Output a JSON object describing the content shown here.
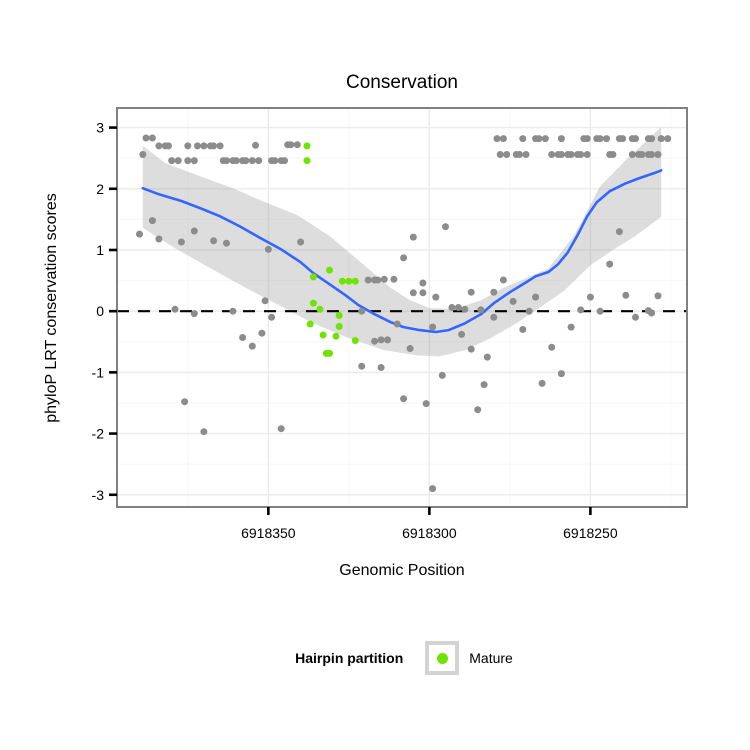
{
  "title": "Conservation",
  "axes": {
    "x": {
      "label": "Genomic Position",
      "reversed": true,
      "domain_left": 6918397,
      "domain_right": 6918220,
      "ticks": [
        {
          "v": 6918350,
          "label": "6918350"
        },
        {
          "v": 6918300,
          "label": "6918300"
        },
        {
          "v": 6918250,
          "label": "6918250"
        }
      ],
      "minor": [
        6918375,
        6918325,
        6918275,
        6918225
      ]
    },
    "y": {
      "label": "phyloP LRT conservation scores",
      "domain_bottom": -3.2,
      "domain_top": 3.32,
      "ticks": [
        {
          "v": 3,
          "label": "3"
        },
        {
          "v": 2,
          "label": "2"
        },
        {
          "v": 1,
          "label": "1"
        },
        {
          "v": 0,
          "label": "0"
        },
        {
          "v": -1,
          "label": "-1"
        },
        {
          "v": -2,
          "label": "-2"
        },
        {
          "v": -3,
          "label": "-3"
        }
      ],
      "minor": [
        2.5,
        1.5,
        0.5,
        -0.5,
        -1.5,
        -2.5
      ]
    }
  },
  "legend": {
    "title": "Hairpin partition",
    "items": [
      {
        "label": "Mature",
        "color": "#6fe400"
      }
    ]
  },
  "colors": {
    "other_points": "#8c8c8c",
    "mature_points": "#6fe400",
    "smooth_line": "#3366ff",
    "band_fill": "#999999",
    "band_opacity": 0.33,
    "panel_border": "#808080",
    "grid_major": "#ebebeb",
    "grid_minor": "#f6f6f6",
    "reference_line": "#000000"
  },
  "chart_data": {
    "type": "scatter",
    "title": "Conservation",
    "xlabel": "Genomic Position",
    "ylabel": "phyloP LRT conservation scores",
    "x_axis_reversed": true,
    "xlim": [
      6918397,
      6918220
    ],
    "ylim": [
      -3.2,
      3.32
    ],
    "reference_line": {
      "y": 0,
      "style": "dashed",
      "color": "#000000"
    },
    "series": [
      {
        "name": "Other",
        "color": "#8c8c8c",
        "points": [
          [
            6918388,
            2.83
          ],
          [
            6918386,
            2.83
          ],
          [
            6918389,
            2.56
          ],
          [
            6918384,
            2.7
          ],
          [
            6918382,
            2.7
          ],
          [
            6918381,
            2.7
          ],
          [
            6918375,
            2.7
          ],
          [
            6918372,
            2.7
          ],
          [
            6918370,
            2.7
          ],
          [
            6918368,
            2.7
          ],
          [
            6918367,
            2.7
          ],
          [
            6918365,
            2.7
          ],
          [
            6918354,
            2.71
          ],
          [
            6918344,
            2.72
          ],
          [
            6918343,
            2.72
          ],
          [
            6918341,
            2.72
          ],
          [
            6918380,
            2.46
          ],
          [
            6918378,
            2.46
          ],
          [
            6918375,
            2.46
          ],
          [
            6918373,
            2.46
          ],
          [
            6918364,
            2.46
          ],
          [
            6918363,
            2.46
          ],
          [
            6918361,
            2.46
          ],
          [
            6918360,
            2.46
          ],
          [
            6918358,
            2.46
          ],
          [
            6918357,
            2.46
          ],
          [
            6918355,
            2.46
          ],
          [
            6918353,
            2.46
          ],
          [
            6918349,
            2.46
          ],
          [
            6918348,
            2.46
          ],
          [
            6918346,
            2.46
          ],
          [
            6918345,
            2.46
          ],
          [
            6918279,
            2.82
          ],
          [
            6918277,
            2.82
          ],
          [
            6918271,
            2.82
          ],
          [
            6918267,
            2.82
          ],
          [
            6918266,
            2.82
          ],
          [
            6918264,
            2.82
          ],
          [
            6918259,
            2.82
          ],
          [
            6918252,
            2.82
          ],
          [
            6918251,
            2.82
          ],
          [
            6918248,
            2.82
          ],
          [
            6918247,
            2.82
          ],
          [
            6918245,
            2.82
          ],
          [
            6918241,
            2.82
          ],
          [
            6918240,
            2.82
          ],
          [
            6918237,
            2.82
          ],
          [
            6918236,
            2.82
          ],
          [
            6918232,
            2.82
          ],
          [
            6918231,
            2.82
          ],
          [
            6918228,
            2.82
          ],
          [
            6918226,
            2.82
          ],
          [
            6918278,
            2.56
          ],
          [
            6918276,
            2.56
          ],
          [
            6918273,
            2.56
          ],
          [
            6918272,
            2.56
          ],
          [
            6918270,
            2.56
          ],
          [
            6918262,
            2.56
          ],
          [
            6918260,
            2.56
          ],
          [
            6918259,
            2.56
          ],
          [
            6918257,
            2.56
          ],
          [
            6918256,
            2.56
          ],
          [
            6918254,
            2.56
          ],
          [
            6918253,
            2.56
          ],
          [
            6918251,
            2.56
          ],
          [
            6918244,
            2.56
          ],
          [
            6918243,
            2.56
          ],
          [
            6918237,
            2.56
          ],
          [
            6918235,
            2.56
          ],
          [
            6918234,
            2.56
          ],
          [
            6918232,
            2.56
          ],
          [
            6918231,
            2.56
          ],
          [
            6918229,
            2.56
          ],
          [
            6918390,
            1.26
          ],
          [
            6918386,
            1.48
          ],
          [
            6918384,
            1.18
          ],
          [
            6918377,
            1.13
          ],
          [
            6918373,
            1.31
          ],
          [
            6918367,
            1.15
          ],
          [
            6918363,
            1.11
          ],
          [
            6918350,
            1.01
          ],
          [
            6918340,
            1.13
          ],
          [
            6918305,
            1.21
          ],
          [
            6918295,
            1.38
          ],
          [
            6918241,
            1.3
          ],
          [
            6918244,
            0.77
          ],
          [
            6918239,
            0.26
          ],
          [
            6918229,
            0.25
          ],
          [
            6918379,
            0.03
          ],
          [
            6918373,
            -0.04
          ],
          [
            6918361,
            0.0
          ],
          [
            6918351,
            0.17
          ],
          [
            6918349,
            -0.1
          ],
          [
            6918358,
            -0.43
          ],
          [
            6918355,
            -0.57
          ],
          [
            6918352,
            -0.36
          ],
          [
            6918319,
            0.51
          ],
          [
            6918317,
            0.51
          ],
          [
            6918316,
            0.51
          ],
          [
            6918314,
            0.52
          ],
          [
            6918311,
            0.52
          ],
          [
            6918321,
            0.0
          ],
          [
            6918317,
            -0.49
          ],
          [
            6918315,
            -0.47
          ],
          [
            6918313,
            -0.47
          ],
          [
            6918321,
            -0.9
          ],
          [
            6918315,
            -0.92
          ],
          [
            6918310,
            -0.21
          ],
          [
            6918308,
            0.87
          ],
          [
            6918302,
            0.46
          ],
          [
            6918305,
            0.3
          ],
          [
            6918302,
            0.3
          ],
          [
            6918298,
            0.23
          ],
          [
            6918299,
            -0.26
          ],
          [
            6918306,
            -0.61
          ],
          [
            6918293,
            0.06
          ],
          [
            6918291,
            0.06
          ],
          [
            6918289,
            0.03
          ],
          [
            6918287,
            0.31
          ],
          [
            6918284,
            0.02
          ],
          [
            6918280,
            0.31
          ],
          [
            6918277,
            0.51
          ],
          [
            6918280,
            -0.1
          ],
          [
            6918274,
            0.16
          ],
          [
            6918290,
            -0.38
          ],
          [
            6918287,
            -0.62
          ],
          [
            6918282,
            -0.75
          ],
          [
            6918296,
            -1.05
          ],
          [
            6918271,
            -0.3
          ],
          [
            6918267,
            0.23
          ],
          [
            6918269,
            0.0
          ],
          [
            6918262,
            -0.59
          ],
          [
            6918259,
            -1.02
          ],
          [
            6918256,
            -0.26
          ],
          [
            6918253,
            0.02
          ],
          [
            6918250,
            0.23
          ],
          [
            6918247,
            0.0
          ],
          [
            6918236,
            -0.1
          ],
          [
            6918232,
            0.01
          ],
          [
            6918231,
            -0.03
          ],
          [
            6918376,
            -1.48
          ],
          [
            6918370,
            -1.97
          ],
          [
            6918346,
            -1.92
          ],
          [
            6918308,
            -1.43
          ],
          [
            6918301,
            -1.51
          ],
          [
            6918285,
            -1.61
          ],
          [
            6918283,
            -1.2
          ],
          [
            6918265,
            -1.18
          ],
          [
            6918299,
            -2.9
          ]
        ]
      },
      {
        "name": "Mature",
        "color": "#6fe400",
        "points": [
          [
            6918338,
            2.7
          ],
          [
            6918338,
            2.46
          ],
          [
            6918331,
            0.67
          ],
          [
            6918336,
            0.56
          ],
          [
            6918327,
            0.49
          ],
          [
            6918325,
            0.49
          ],
          [
            6918323,
            0.49
          ],
          [
            6918336,
            0.13
          ],
          [
            6918334,
            0.03
          ],
          [
            6918328,
            -0.07
          ],
          [
            6918337,
            -0.21
          ],
          [
            6918328,
            -0.25
          ],
          [
            6918333,
            -0.39
          ],
          [
            6918329,
            -0.41
          ],
          [
            6918323,
            -0.48
          ],
          [
            6918332,
            -0.69
          ],
          [
            6918331,
            -0.69
          ]
        ]
      }
    ],
    "smooth": {
      "color": "#3366ff",
      "line": [
        [
          6918389,
          2.01
        ],
        [
          6918384,
          1.91
        ],
        [
          6918377,
          1.8
        ],
        [
          6918371,
          1.68
        ],
        [
          6918365,
          1.55
        ],
        [
          6918359,
          1.39
        ],
        [
          6918353,
          1.21
        ],
        [
          6918346,
          1.01
        ],
        [
          6918340,
          0.8
        ],
        [
          6918336,
          0.62
        ],
        [
          6918331,
          0.44
        ],
        [
          6918326,
          0.26
        ],
        [
          6918322,
          0.1
        ],
        [
          6918317,
          -0.05
        ],
        [
          6918312,
          -0.18
        ],
        [
          6918308,
          -0.26
        ],
        [
          6918303,
          -0.31
        ],
        [
          6918298,
          -0.34
        ],
        [
          6918294,
          -0.31
        ],
        [
          6918289,
          -0.2
        ],
        [
          6918284,
          -0.05
        ],
        [
          6918280,
          0.13
        ],
        [
          6918275,
          0.31
        ],
        [
          6918270,
          0.47
        ],
        [
          6918267,
          0.57
        ],
        [
          6918263,
          0.64
        ],
        [
          6918260,
          0.77
        ],
        [
          6918257,
          0.96
        ],
        [
          6918254,
          1.24
        ],
        [
          6918251,
          1.55
        ],
        [
          6918248,
          1.78
        ],
        [
          6918244,
          1.96
        ],
        [
          6918239,
          2.09
        ],
        [
          6918235,
          2.17
        ],
        [
          6918230,
          2.26
        ],
        [
          6918228,
          2.3
        ]
      ],
      "band_upper": [
        [
          6918389,
          2.7
        ],
        [
          6918382,
          2.42
        ],
        [
          6918372,
          2.22
        ],
        [
          6918361,
          2.01
        ],
        [
          6918351,
          1.78
        ],
        [
          6918341,
          1.57
        ],
        [
          6918331,
          1.23
        ],
        [
          6918322,
          0.83
        ],
        [
          6918312,
          0.38
        ],
        [
          6918306,
          0.18
        ],
        [
          6918300,
          0.05
        ],
        [
          6918292,
          0.03
        ],
        [
          6918284,
          0.18
        ],
        [
          6918277,
          0.38
        ],
        [
          6918269,
          0.56
        ],
        [
          6918263,
          0.7
        ],
        [
          6918255,
          1.24
        ],
        [
          6918247,
          2.04
        ],
        [
          6918239,
          2.47
        ],
        [
          6918233,
          2.76
        ],
        [
          6918228,
          3.01
        ]
      ],
      "band_lower": [
        [
          6918389,
          1.36
        ],
        [
          6918379,
          1.03
        ],
        [
          6918368,
          0.7
        ],
        [
          6918357,
          0.38
        ],
        [
          6918346,
          0.08
        ],
        [
          6918336,
          -0.2
        ],
        [
          6918325,
          -0.44
        ],
        [
          6918314,
          -0.64
        ],
        [
          6918304,
          -0.72
        ],
        [
          6918297,
          -0.74
        ],
        [
          6918289,
          -0.64
        ],
        [
          6918281,
          -0.44
        ],
        [
          6918273,
          -0.2
        ],
        [
          6918266,
          0.05
        ],
        [
          6918258,
          0.34
        ],
        [
          6918250,
          0.75
        ],
        [
          6918243,
          1.0
        ],
        [
          6918236,
          1.23
        ],
        [
          6918228,
          1.54
        ]
      ]
    }
  }
}
